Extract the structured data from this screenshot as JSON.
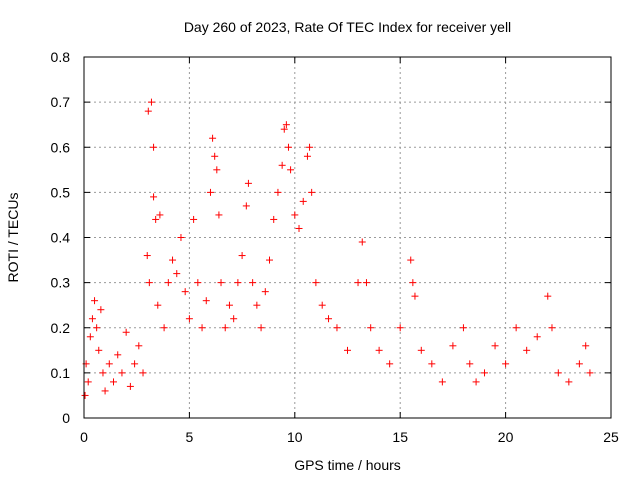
{
  "chart_data": {
    "type": "scatter",
    "title": "Day 260 of 2023, Rate Of TEC Index for receiver yell",
    "xlabel": "GPS time / hours",
    "ylabel": "ROTI / TECUs",
    "xlim": [
      0,
      25
    ],
    "ylim": [
      0,
      0.8
    ],
    "xticks": [
      "0",
      "5",
      "10",
      "15",
      "20",
      "25"
    ],
    "yticks": [
      "0",
      "0.1",
      "0.2",
      "0.3",
      "0.4",
      "0.5",
      "0.6",
      "0.7",
      "0.8"
    ],
    "grid": true,
    "marker": "+",
    "color": "#ff0000",
    "series": [
      {
        "values_xy": [
          [
            0.05,
            0.05
          ],
          [
            0.1,
            0.12
          ],
          [
            0.2,
            0.08
          ],
          [
            0.3,
            0.18
          ],
          [
            0.4,
            0.22
          ],
          [
            0.5,
            0.26
          ],
          [
            0.6,
            0.2
          ],
          [
            0.7,
            0.15
          ],
          [
            0.8,
            0.24
          ],
          [
            0.9,
            0.1
          ],
          [
            1.0,
            0.06
          ],
          [
            1.2,
            0.12
          ],
          [
            1.4,
            0.08
          ],
          [
            1.6,
            0.14
          ],
          [
            1.8,
            0.1
          ],
          [
            2.0,
            0.19
          ],
          [
            2.2,
            0.07
          ],
          [
            2.4,
            0.12
          ],
          [
            2.6,
            0.16
          ],
          [
            2.8,
            0.1
          ],
          [
            3.0,
            0.36
          ],
          [
            3.05,
            0.68
          ],
          [
            3.2,
            0.7
          ],
          [
            3.3,
            0.6
          ],
          [
            3.3,
            0.49
          ],
          [
            3.4,
            0.44
          ],
          [
            3.6,
            0.45
          ],
          [
            3.1,
            0.3
          ],
          [
            3.5,
            0.25
          ],
          [
            3.8,
            0.2
          ],
          [
            4.0,
            0.3
          ],
          [
            4.2,
            0.35
          ],
          [
            4.4,
            0.32
          ],
          [
            4.6,
            0.4
          ],
          [
            4.8,
            0.28
          ],
          [
            5.0,
            0.22
          ],
          [
            5.2,
            0.44
          ],
          [
            5.4,
            0.3
          ],
          [
            5.6,
            0.2
          ],
          [
            5.8,
            0.26
          ],
          [
            6.0,
            0.5
          ],
          [
            6.1,
            0.62
          ],
          [
            6.2,
            0.58
          ],
          [
            6.3,
            0.55
          ],
          [
            6.4,
            0.45
          ],
          [
            6.5,
            0.3
          ],
          [
            6.7,
            0.2
          ],
          [
            6.9,
            0.25
          ],
          [
            7.1,
            0.22
          ],
          [
            7.3,
            0.3
          ],
          [
            7.5,
            0.36
          ],
          [
            7.7,
            0.47
          ],
          [
            7.8,
            0.52
          ],
          [
            8.0,
            0.3
          ],
          [
            8.2,
            0.25
          ],
          [
            8.4,
            0.2
          ],
          [
            8.6,
            0.28
          ],
          [
            8.8,
            0.35
          ],
          [
            9.0,
            0.44
          ],
          [
            9.2,
            0.5
          ],
          [
            9.4,
            0.56
          ],
          [
            9.5,
            0.64
          ],
          [
            9.6,
            0.65
          ],
          [
            9.7,
            0.6
          ],
          [
            9.8,
            0.55
          ],
          [
            10.0,
            0.45
          ],
          [
            10.2,
            0.42
          ],
          [
            10.4,
            0.48
          ],
          [
            10.6,
            0.58
          ],
          [
            10.7,
            0.6
          ],
          [
            10.8,
            0.5
          ],
          [
            11.0,
            0.3
          ],
          [
            11.3,
            0.25
          ],
          [
            11.6,
            0.22
          ],
          [
            12.0,
            0.2
          ],
          [
            12.5,
            0.15
          ],
          [
            13.0,
            0.3
          ],
          [
            13.2,
            0.39
          ],
          [
            13.4,
            0.3
          ],
          [
            13.6,
            0.2
          ],
          [
            14.0,
            0.15
          ],
          [
            14.5,
            0.12
          ],
          [
            15.0,
            0.2
          ],
          [
            15.5,
            0.35
          ],
          [
            15.6,
            0.3
          ],
          [
            15.7,
            0.27
          ],
          [
            16.0,
            0.15
          ],
          [
            16.5,
            0.12
          ],
          [
            17.0,
            0.08
          ],
          [
            17.5,
            0.16
          ],
          [
            18.0,
            0.2
          ],
          [
            18.3,
            0.12
          ],
          [
            18.6,
            0.08
          ],
          [
            19.0,
            0.1
          ],
          [
            19.5,
            0.16
          ],
          [
            20.0,
            0.12
          ],
          [
            20.5,
            0.2
          ],
          [
            21.0,
            0.15
          ],
          [
            21.5,
            0.18
          ],
          [
            22.0,
            0.27
          ],
          [
            22.2,
            0.2
          ],
          [
            22.5,
            0.1
          ],
          [
            23.0,
            0.08
          ],
          [
            23.5,
            0.12
          ],
          [
            23.8,
            0.16
          ],
          [
            24.0,
            0.1
          ]
        ]
      }
    ]
  }
}
